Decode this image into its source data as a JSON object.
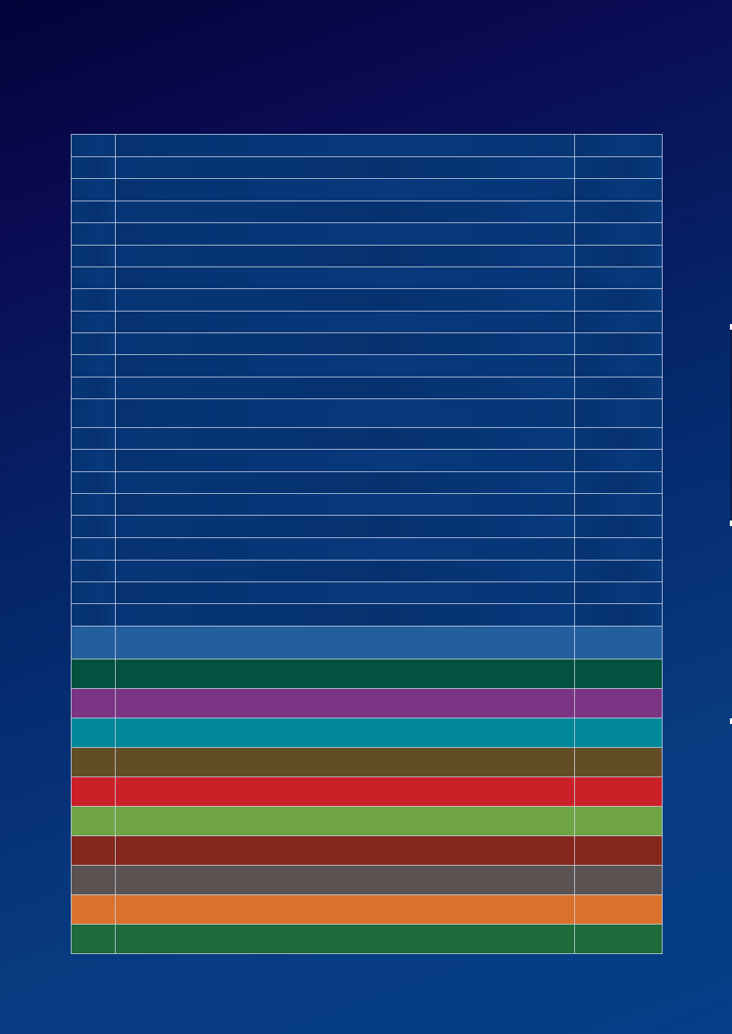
{
  "table": {
    "rows": [
      {
        "cells": [
          "",
          "",
          ""
        ],
        "color": "#06357a",
        "height": 32
      },
      {
        "cells": [
          "",
          "",
          ""
        ],
        "color": "#06357a",
        "height": 31
      },
      {
        "cells": [
          "",
          "",
          ""
        ],
        "color": "#06357a",
        "height": 32
      },
      {
        "cells": [
          "",
          "",
          ""
        ],
        "color": "#06357a",
        "height": 31
      },
      {
        "cells": [
          "",
          "",
          ""
        ],
        "color": "#06357a",
        "height": 32
      },
      {
        "cells": [
          "",
          "",
          ""
        ],
        "color": "#06357a",
        "height": 31
      },
      {
        "cells": [
          "",
          "",
          ""
        ],
        "color": "#06357a",
        "height": 31
      },
      {
        "cells": [
          "",
          "",
          ""
        ],
        "color": "#06357a",
        "height": 32
      },
      {
        "cells": [
          "",
          "",
          ""
        ],
        "color": "#06357a",
        "height": 31
      },
      {
        "cells": [
          "",
          "",
          ""
        ],
        "color": "#06357a",
        "height": 31
      },
      {
        "cells": [
          "",
          "",
          ""
        ],
        "color": "#06357a",
        "height": 32
      },
      {
        "cells": [
          "",
          "",
          ""
        ],
        "color": "#06357a",
        "height": 31
      },
      {
        "cells": [
          "",
          "",
          ""
        ],
        "color": "#06357a",
        "height": 41
      },
      {
        "cells": [
          "",
          "",
          ""
        ],
        "color": "#06357a",
        "height": 31
      },
      {
        "cells": [
          "",
          "",
          ""
        ],
        "color": "#06357a",
        "height": 32
      },
      {
        "cells": [
          "",
          "",
          ""
        ],
        "color": "#06357a",
        "height": 31
      },
      {
        "cells": [
          "",
          "",
          ""
        ],
        "color": "#06357a",
        "height": 31
      },
      {
        "cells": [
          "",
          "",
          ""
        ],
        "color": "#06357a",
        "height": 32
      },
      {
        "cells": [
          "",
          "",
          ""
        ],
        "color": "#06357a",
        "height": 32
      },
      {
        "cells": [
          "",
          "",
          ""
        ],
        "color": "#06357a",
        "height": 31
      },
      {
        "cells": [
          "",
          "",
          ""
        ],
        "color": "#06357a",
        "height": 31
      },
      {
        "cells": [
          "",
          "",
          ""
        ],
        "color": "#06357a",
        "height": 32
      },
      {
        "cells": [
          "",
          "",
          ""
        ],
        "color": "#235f9c",
        "height": 47
      },
      {
        "cells": [
          "",
          "",
          ""
        ],
        "color": "#03513f",
        "height": 42
      },
      {
        "cells": [
          "",
          "",
          ""
        ],
        "color": "#7a3484",
        "height": 42
      },
      {
        "cells": [
          "",
          "",
          ""
        ],
        "color": "#008898",
        "height": 42
      },
      {
        "cells": [
          "",
          "",
          ""
        ],
        "color": "#624d27",
        "height": 42
      },
      {
        "cells": [
          "",
          "",
          ""
        ],
        "color": "#cc2028",
        "height": 42
      },
      {
        "cells": [
          "",
          "",
          ""
        ],
        "color": "#6fa444",
        "height": 42
      },
      {
        "cells": [
          "",
          "",
          ""
        ],
        "color": "#86271e",
        "height": 42
      },
      {
        "cells": [
          "",
          "",
          ""
        ],
        "color": "#5b5352",
        "height": 42
      },
      {
        "cells": [
          "",
          "",
          ""
        ],
        "color": "#d9732b",
        "height": 42
      },
      {
        "cells": [
          "",
          "",
          ""
        ],
        "color": "#1d6a3a",
        "height": 42
      }
    ]
  },
  "colors": {
    "background_dark": "#020339",
    "background_light": "#053f88",
    "grid_line": "#c9d3e4"
  }
}
